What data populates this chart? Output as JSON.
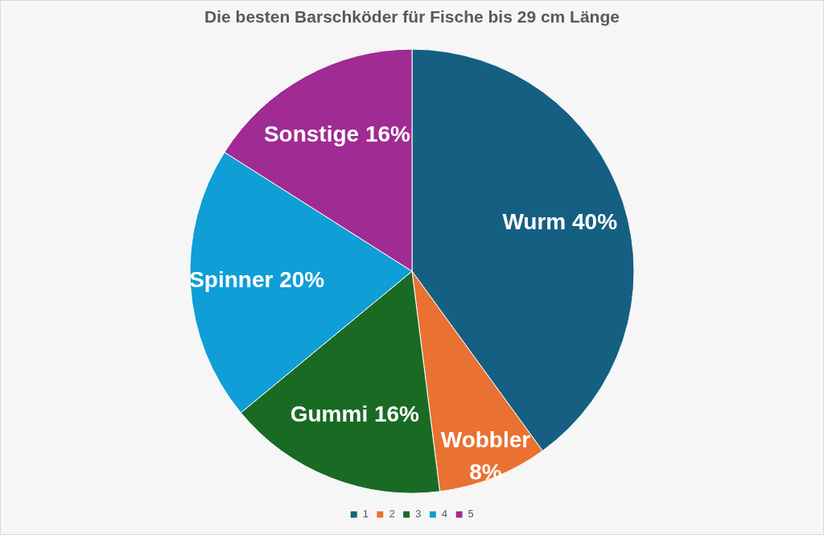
{
  "chart_data": {
    "type": "pie",
    "title": "Die besten Barschköder für Fische bis 29 cm Länge",
    "categories": [
      "1",
      "2",
      "3",
      "4",
      "5"
    ],
    "values": [
      40,
      8,
      16,
      20,
      16
    ],
    "colors": [
      "#156082",
      "#e97132",
      "#196b24",
      "#0f9ed5",
      "#a02b93"
    ],
    "value_labels": [
      "Wurm 40%",
      "Wobbler 8%",
      "Gummi 16%",
      "Spinner 20%",
      "Sonstige 16%"
    ],
    "legend": "bottom"
  }
}
